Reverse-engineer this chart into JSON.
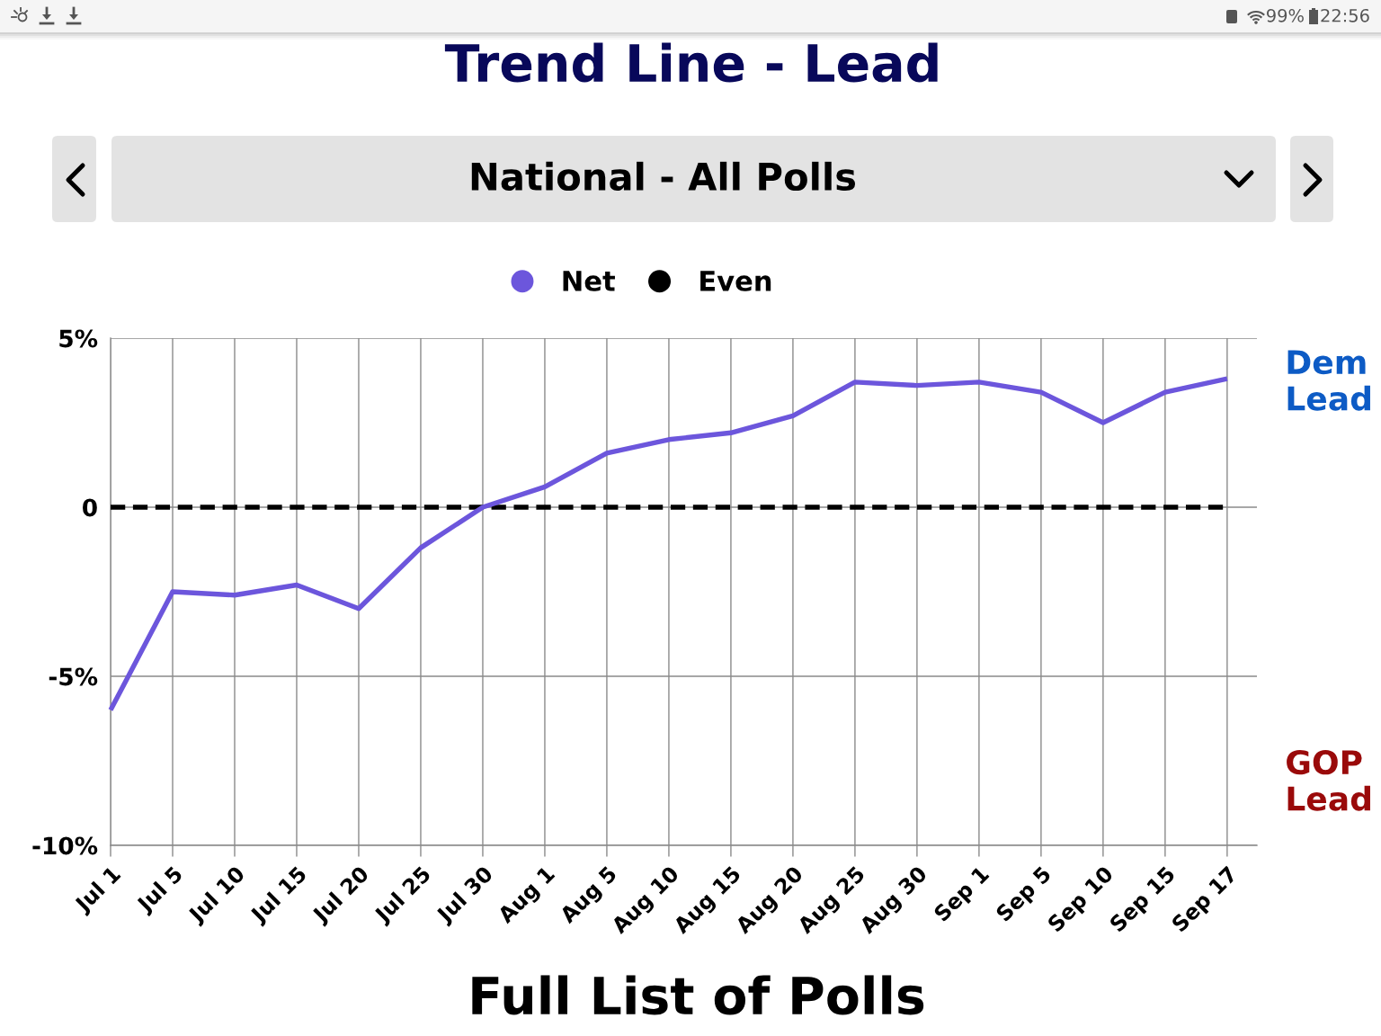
{
  "chart_data": {
    "type": "line",
    "title": "Trend Line - Lead",
    "subtitle": "National - All Polls",
    "categories": [
      "Jul 1",
      "Jul 5",
      "Jul 10",
      "Jul 15",
      "Jul 20",
      "Jul 25",
      "Jul 30",
      "Aug 1",
      "Aug 5",
      "Aug 10",
      "Aug 15",
      "Aug 20",
      "Aug 25",
      "Aug 30",
      "Sep 1",
      "Sep 5",
      "Sep 10",
      "Sep 15",
      "Sep 17"
    ],
    "series": [
      {
        "name": "Net",
        "color": "#6c56dc",
        "values": [
          -6.0,
          -2.5,
          -2.6,
          -2.3,
          -3.0,
          -1.2,
          0,
          0.6,
          1.6,
          2.0,
          2.2,
          2.7,
          3.7,
          3.6,
          3.7,
          3.4,
          2.5,
          3.4,
          3.8
        ]
      },
      {
        "name": "Even",
        "color": "#000000",
        "line_style": "dashed",
        "values": [
          0,
          0,
          0,
          0,
          0,
          0,
          0,
          0,
          0,
          0,
          0,
          0,
          0,
          0,
          0,
          0,
          0,
          0,
          0
        ]
      }
    ],
    "ylim": [
      -10,
      5
    ],
    "yticks": [
      {
        "value": -10,
        "label": "-10%"
      },
      {
        "value": -5,
        "label": "-5%"
      },
      0,
      {
        "value": 5,
        "label": "5%"
      }
    ],
    "grid": true,
    "legend": "top",
    "annotations": [
      "Dem Lead",
      "GOP Lead",
      "Full List of Polls",
      "99%",
      "22:56"
    ]
  }
}
